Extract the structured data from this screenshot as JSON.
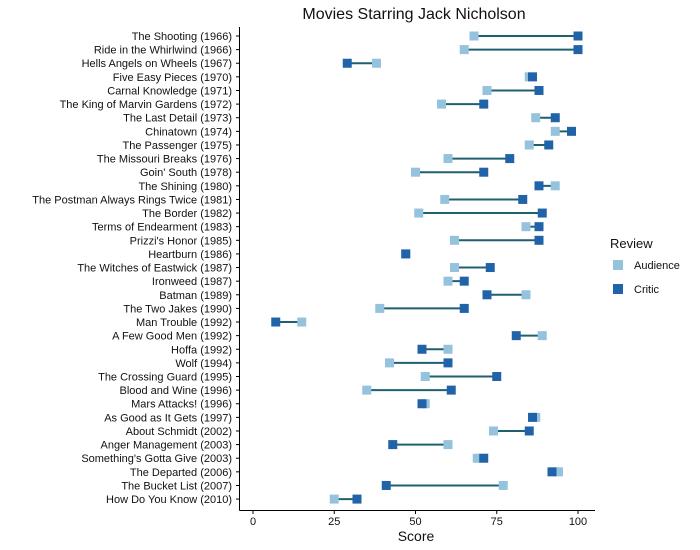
{
  "chart_data": {
    "type": "dumbbell",
    "title": "Movies Starring Jack Nicholson",
    "xlabel": "Score",
    "ylabel": "",
    "xlim": [
      -4,
      105
    ],
    "xticks": [
      0,
      25,
      50,
      75,
      100
    ],
    "grid": false,
    "legend": {
      "title": "Review",
      "position": "right",
      "entries": [
        {
          "name": "Audience",
          "color": "#95c2dd"
        },
        {
          "name": "Critic",
          "color": "#2063a8"
        }
      ]
    },
    "connector_color": "#1f6070",
    "categories": [
      "The Shooting (1966)",
      "Ride in the Whirlwind (1966)",
      "Hells Angels on Wheels (1967)",
      "Five Easy Pieces (1970)",
      "Carnal Knowledge (1971)",
      "The King of Marvin Gardens (1972)",
      "The Last Detail (1973)",
      "Chinatown (1974)",
      "The Passenger (1975)",
      "The Missouri Breaks (1976)",
      "Goin' South (1978)",
      "The Shining (1980)",
      "The Postman Always Rings Twice (1981)",
      "The Border (1982)",
      "Terms of Endearment (1983)",
      "Prizzi's Honor (1985)",
      "Heartburn (1986)",
      "The Witches of Eastwick (1987)",
      "Ironweed (1987)",
      "Batman (1989)",
      "The Two Jakes (1990)",
      "Man Trouble (1992)",
      "A Few Good Men (1992)",
      "Hoffa (1992)",
      "Wolf (1994)",
      "The Crossing Guard (1995)",
      "Blood and Wine (1996)",
      "Mars Attacks! (1996)",
      "As Good as It Gets (1997)",
      "About Schmidt (2002)",
      "Anger Management (2003)",
      "Something's Gotta Give (2003)",
      "The Departed (2006)",
      "The Bucket List (2007)",
      "How Do You Know (2010)"
    ],
    "series": [
      {
        "name": "Audience",
        "values": [
          68,
          65,
          38,
          85,
          72,
          58,
          87,
          93,
          85,
          60,
          50,
          93,
          59,
          51,
          84,
          62,
          47,
          62,
          60,
          84,
          39,
          15,
          89,
          60,
          42,
          53,
          35,
          53,
          87,
          74,
          60,
          69,
          94,
          77,
          25
        ]
      },
      {
        "name": "Critic",
        "values": [
          100,
          100,
          29,
          86,
          88,
          71,
          93,
          98,
          91,
          79,
          71,
          88,
          83,
          89,
          88,
          88,
          47,
          73,
          65,
          72,
          65,
          7,
          81,
          52,
          60,
          75,
          61,
          52,
          86,
          85,
          43,
          71,
          92,
          41,
          32
        ]
      }
    ]
  }
}
